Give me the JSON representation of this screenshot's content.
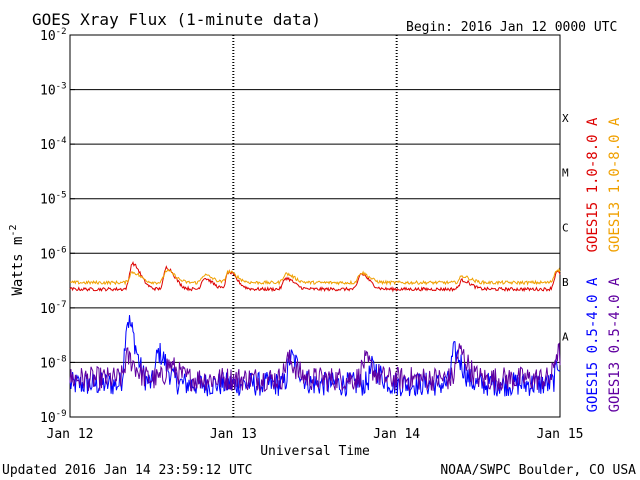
{
  "chart_data": {
    "type": "line",
    "title": "GOES Xray Flux (1-minute data)",
    "begin_label": "Begin:  2016 Jan 12 0000 UTC",
    "ylabel_main": "Watts m",
    "ylabel_exp": "-2",
    "xlabel": "Universal Time",
    "y_scale": "log",
    "ylim": [
      1e-09,
      0.01
    ],
    "y_ticks": [
      {
        "mant": "10",
        "exp": "-2",
        "value": 0.01
      },
      {
        "mant": "10",
        "exp": "-3",
        "value": 0.001
      },
      {
        "mant": "10",
        "exp": "-4",
        "value": 0.0001
      },
      {
        "mant": "10",
        "exp": "-5",
        "value": 1e-05
      },
      {
        "mant": "10",
        "exp": "-6",
        "value": 1e-06
      },
      {
        "mant": "10",
        "exp": "-7",
        "value": 1e-07
      },
      {
        "mant": "10",
        "exp": "-8",
        "value": 1e-08
      },
      {
        "mant": "10",
        "exp": "-9",
        "value": 1e-09
      }
    ],
    "x_ticks": [
      {
        "label": "Jan 12",
        "day": 0
      },
      {
        "label": "Jan 13",
        "day": 1
      },
      {
        "label": "Jan 14",
        "day": 2
      },
      {
        "label": "Jan 15",
        "day": 3
      }
    ],
    "xlim_days": [
      0,
      3
    ],
    "class_labels": [
      {
        "label": "X",
        "value": 0.0001
      },
      {
        "label": "M",
        "value": 1e-05
      },
      {
        "label": "C",
        "value": 1e-06
      },
      {
        "label": "B",
        "value": 1e-07
      },
      {
        "label": "A",
        "value": 1e-08
      }
    ],
    "legend_placement": "right",
    "series": [
      {
        "name": "GOES15 1.0-8.0 A",
        "color": "#dd0000",
        "baseline": 2.2e-07,
        "peaks": [
          [
            0.38,
            6.5e-07
          ],
          [
            0.59,
            5.5e-07
          ],
          [
            0.82,
            3.5e-07
          ],
          [
            0.97,
            4.5e-07
          ],
          [
            1.32,
            3.5e-07
          ],
          [
            1.78,
            4.2e-07
          ],
          [
            2.4,
            3.2e-07
          ],
          [
            2.98,
            4.5e-07
          ]
        ]
      },
      {
        "name": "GOES13 1.0-8.0 A",
        "color": "#f0a000",
        "baseline": 2.9e-07,
        "peaks": [
          [
            0.38,
            4.5e-07
          ],
          [
            0.59,
            4.8e-07
          ],
          [
            0.82,
            4e-07
          ],
          [
            0.97,
            4.6e-07
          ],
          [
            1.32,
            4.2e-07
          ],
          [
            1.78,
            4.4e-07
          ],
          [
            2.4,
            3.8e-07
          ],
          [
            2.98,
            5e-07
          ]
        ]
      },
      {
        "name": "GOES15 0.5-4.0 A",
        "color": "#0000ff",
        "baseline": 4e-09,
        "peaks": [
          [
            0.35,
            6e-08
          ],
          [
            0.54,
            1.5e-08
          ],
          [
            1.35,
            1.2e-08
          ],
          [
            1.85,
            8e-09
          ],
          [
            2.35,
            1.5e-08
          ],
          [
            2.99,
            1e-08
          ]
        ]
      },
      {
        "name": "GOES13 0.5-4.0 A",
        "color": "#6000a0",
        "baseline": 5e-09,
        "peaks": [
          [
            0.35,
            1.2e-08
          ],
          [
            0.6,
            9e-09
          ],
          [
            1.33,
            1.1e-08
          ],
          [
            1.8,
            1e-08
          ],
          [
            2.38,
            1.6e-08
          ],
          [
            2.98,
            1.5e-08
          ]
        ]
      }
    ]
  },
  "footer": {
    "updated": "Updated 2016 Jan 14 23:59:12 UTC",
    "credit": "NOAA/SWPC Boulder, CO USA"
  }
}
